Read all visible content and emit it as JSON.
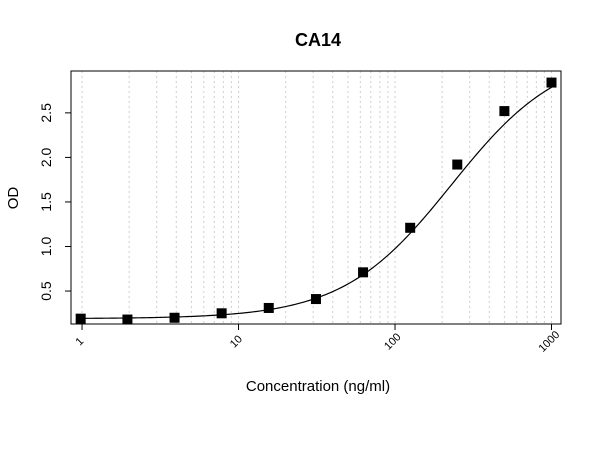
{
  "chart_data": {
    "type": "scatter",
    "title": "CA14",
    "xlabel": "Concentration (ng/ml)",
    "ylabel": "OD",
    "xscale": "log",
    "xlim": [
      0.85,
      1150
    ],
    "ylim": [
      0.13,
      2.97
    ],
    "grid": "vertical dotted at log minor ticks",
    "xticks": [
      1,
      10,
      100,
      1000
    ],
    "xtick_labels": [
      "1",
      "10",
      "100",
      "1000"
    ],
    "yticks": [
      0.5,
      1.0,
      1.5,
      2.0,
      2.5
    ],
    "ytick_labels": [
      "0.5",
      "1.0",
      "1.5",
      "2.0",
      "2.5"
    ],
    "series": [
      {
        "x": [
          0.98,
          1.95,
          3.9,
          7.8,
          15.6,
          31.25,
          62.5,
          125,
          250,
          500,
          1000
        ],
        "y": [
          0.19,
          0.18,
          0.2,
          0.25,
          0.31,
          0.41,
          0.71,
          1.21,
          1.92,
          2.52,
          2.84
        ]
      }
    ],
    "fit": {
      "model": "4PL",
      "bottom": 0.19,
      "top": 3.2,
      "ec50": 230,
      "hill": 1.25,
      "xrange": [
        0.98,
        1000
      ]
    }
  }
}
